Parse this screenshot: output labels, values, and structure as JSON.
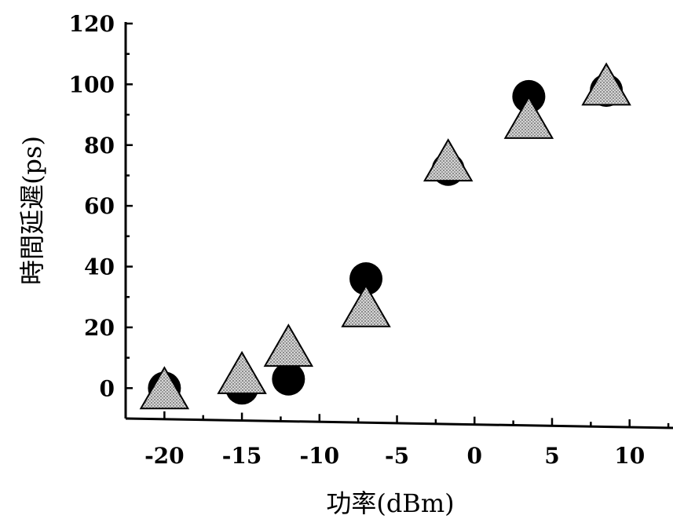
{
  "chart_data": {
    "type": "scatter",
    "xlabel": "功率(dBm)",
    "ylabel": "時間延遲(ps)",
    "xlim": [
      -22.5,
      12.8
    ],
    "ylim": [
      -10,
      120
    ],
    "x_ticks": [
      -20,
      -15,
      -10,
      -5,
      0,
      5,
      10
    ],
    "y_ticks": [
      0,
      20,
      40,
      60,
      80,
      100,
      120
    ],
    "x_tick_labels": [
      "-20",
      "-15",
      "-10",
      "-5",
      "0",
      "5",
      "10"
    ],
    "y_tick_labels": [
      "0",
      "20",
      "40",
      "60",
      "80",
      "100",
      "120"
    ],
    "grid": false,
    "series": [
      {
        "marker": "circle",
        "color": "#000000",
        "x": [
          -20,
          -15,
          -12,
          -7,
          -1.7,
          3.5,
          8.5
        ],
        "y": [
          0,
          0,
          3,
          36,
          72,
          96,
          98
        ]
      },
      {
        "marker": "triangle",
        "color": "#c8c8c8",
        "x": [
          -20,
          -15,
          -12,
          -7,
          -1.7,
          3.5,
          8.5
        ],
        "y": [
          0,
          5,
          14,
          27,
          75,
          89,
          100
        ]
      }
    ]
  }
}
